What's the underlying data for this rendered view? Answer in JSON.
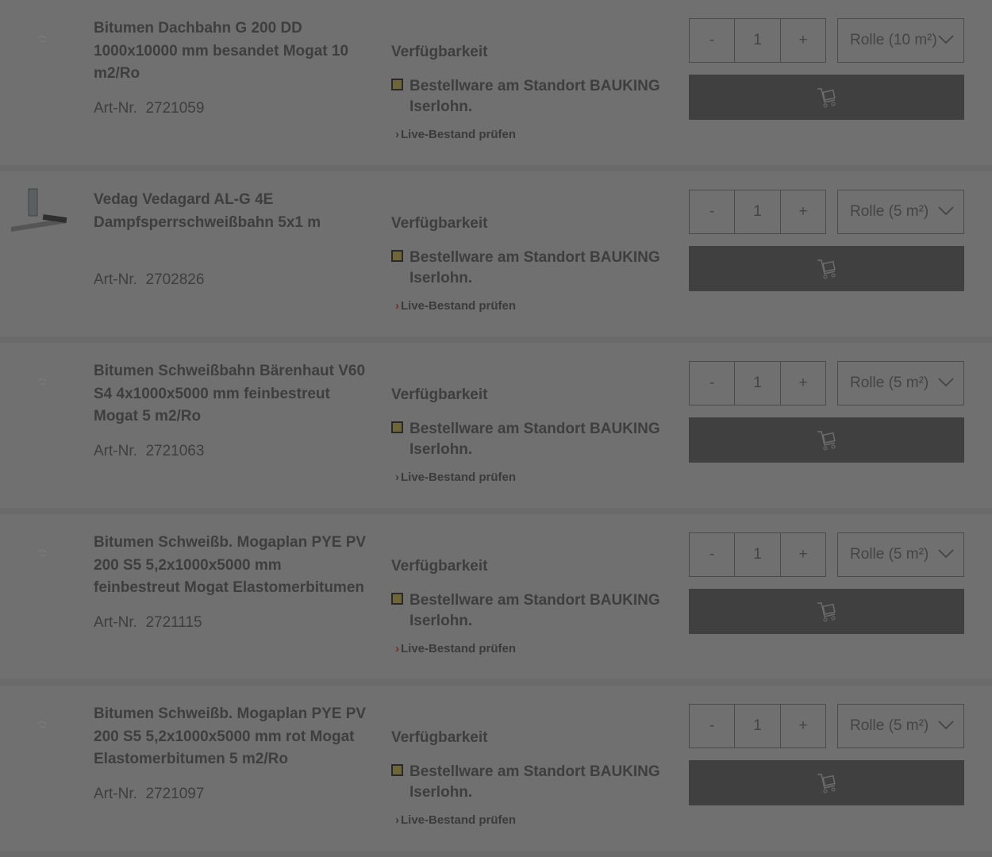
{
  "colors": {
    "overlay_bg": "#707070",
    "cart_button": "#404040",
    "status_ordered": "#6e6637",
    "live_chevron_red": "#7a2a2a"
  },
  "common": {
    "availability_label": "Verfügbarkeit",
    "art_prefix": "Art-Nr.",
    "live_link": "Live-Bestand prüfen",
    "cart_icon": "cart-icon",
    "minus": "-",
    "plus": "+"
  },
  "products": [
    {
      "title": "Bitumen Dachbahn G 200 DD 1000x10000 mm besandet Mogat 10 m2/Ro",
      "art_nr": "2721059",
      "status": "Bestellware am Standort BAUKING Iserlohn.",
      "qty": "1",
      "unit": "Rolle (10 m²)",
      "has_image": false,
      "chevron_red": false
    },
    {
      "title": "Vedag Vedagard AL-G 4E Dampfsperrschweißbahn 5x1 m",
      "art_nr": "2702826",
      "status": "Bestellware am Standort BAUKING Iserlohn.",
      "qty": "1",
      "unit": "Rolle (5 m²)",
      "has_image": true,
      "chevron_red": true
    },
    {
      "title": "Bitumen Schweißbahn Bärenhaut V60 S4 4x1000x5000 mm feinbestreut Mogat 5 m2/Ro",
      "art_nr": "2721063",
      "status": "Bestellware am Standort BAUKING Iserlohn.",
      "qty": "1",
      "unit": "Rolle (5 m²)",
      "has_image": false,
      "chevron_red": false
    },
    {
      "title": "Bitumen Schweißb. Mogaplan PYE PV 200 S5 5,2x1000x5000 mm feinbestreut Mogat Elastomerbitumen",
      "art_nr": "2721115",
      "status": "Bestellware am Standort BAUKING Iserlohn.",
      "qty": "1",
      "unit": "Rolle (5 m²)",
      "has_image": false,
      "chevron_red": true
    },
    {
      "title": "Bitumen Schweißb. Mogaplan PYE PV 200 S5 5,2x1000x5000 mm rot Mogat Elastomerbitumen 5 m2/Ro",
      "art_nr": "2721097",
      "status": "Bestellware am Standort BAUKING Iserlohn.",
      "qty": "1",
      "unit": "Rolle (5 m²)",
      "has_image": false,
      "chevron_red": false
    }
  ]
}
